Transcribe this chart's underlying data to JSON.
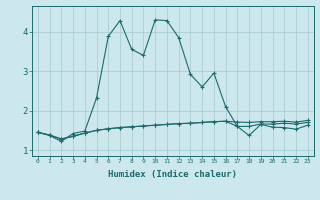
{
  "xlabel": "Humidex (Indice chaleur)",
  "bg_color": "#cce8ec",
  "line_color": "#1a6b6b",
  "grid_color": "#aacdd4",
  "x_values": [
    0,
    1,
    2,
    3,
    4,
    5,
    6,
    7,
    8,
    9,
    10,
    11,
    12,
    13,
    14,
    15,
    16,
    17,
    18,
    19,
    20,
    21,
    22,
    23
  ],
  "line1_y": [
    1.45,
    1.37,
    1.22,
    1.42,
    1.48,
    2.32,
    3.88,
    4.28,
    3.55,
    3.4,
    4.3,
    4.28,
    3.85,
    2.92,
    2.6,
    2.95,
    2.1,
    1.6,
    1.37,
    1.65,
    1.58,
    1.57,
    1.53,
    1.63
  ],
  "line2_y": [
    1.45,
    1.38,
    1.28,
    1.35,
    1.43,
    1.5,
    1.54,
    1.57,
    1.59,
    1.61,
    1.63,
    1.65,
    1.67,
    1.68,
    1.7,
    1.72,
    1.73,
    1.6,
    1.6,
    1.66,
    1.66,
    1.68,
    1.66,
    1.7
  ],
  "line3_y": [
    1.45,
    1.38,
    1.28,
    1.35,
    1.43,
    1.5,
    1.54,
    1.57,
    1.59,
    1.61,
    1.63,
    1.65,
    1.67,
    1.68,
    1.7,
    1.72,
    1.73,
    1.71,
    1.7,
    1.72,
    1.72,
    1.73,
    1.71,
    1.75
  ],
  "xlim": [
    -0.5,
    23.5
  ],
  "ylim": [
    0.85,
    4.65
  ],
  "yticks": [
    1,
    2,
    3,
    4
  ],
  "xticks": [
    0,
    1,
    2,
    3,
    4,
    5,
    6,
    7,
    8,
    9,
    10,
    11,
    12,
    13,
    14,
    15,
    16,
    17,
    18,
    19,
    20,
    21,
    22,
    23
  ],
  "xtick_labels": [
    "0",
    "1",
    "2",
    "3",
    "4",
    "5",
    "6",
    "7",
    "8",
    "9",
    "10",
    "11",
    "12",
    "13",
    "14",
    "15",
    "16",
    "17",
    "18",
    "19",
    "20",
    "21",
    "22",
    "23"
  ]
}
